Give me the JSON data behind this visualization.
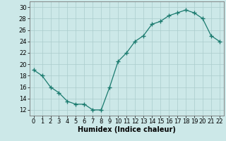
{
  "x": [
    0,
    1,
    2,
    3,
    4,
    5,
    6,
    7,
    8,
    9,
    10,
    11,
    12,
    13,
    14,
    15,
    16,
    17,
    18,
    19,
    20,
    21,
    22
  ],
  "y": [
    19,
    18,
    16,
    15,
    13.5,
    13,
    13,
    12,
    12,
    16,
    20.5,
    22,
    24,
    25,
    27,
    27.5,
    28.5,
    29,
    29.5,
    29,
    28,
    25,
    24
  ],
  "line_color": "#1a7a6e",
  "marker": "+",
  "marker_size": 4,
  "bg_color": "#cce8e8",
  "grid_color": "#aacccc",
  "xlabel": "Humidex (Indice chaleur)",
  "xlim": [
    -0.5,
    22.5
  ],
  "ylim": [
    11,
    31
  ],
  "yticks": [
    12,
    14,
    16,
    18,
    20,
    22,
    24,
    26,
    28,
    30
  ],
  "xticks": [
    0,
    1,
    2,
    3,
    4,
    5,
    6,
    7,
    8,
    9,
    10,
    11,
    12,
    13,
    14,
    15,
    16,
    17,
    18,
    19,
    20,
    21,
    22
  ],
  "label_fontsize": 7,
  "tick_fontsize": 6
}
